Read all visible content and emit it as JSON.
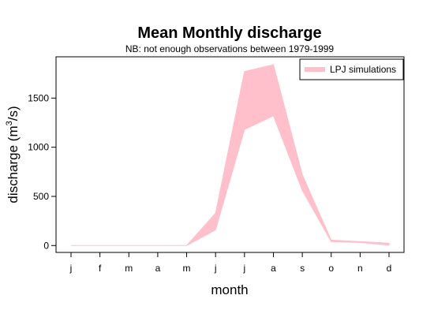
{
  "chart_data": {
    "type": "area",
    "title": "Mean Monthly discharge",
    "subtitle": "NB: not enough observations between 1979-1999",
    "xlabel": "month",
    "ylabel_main": "discharge (m",
    "ylabel_sup": "3",
    "ylabel_end": "/s)",
    "categories": [
      "j",
      "f",
      "m",
      "a",
      "m",
      "j",
      "j",
      "a",
      "s",
      "o",
      "n",
      "d"
    ],
    "yticks": [
      0,
      500,
      1000,
      1500
    ],
    "ylim": [
      -70,
      1920
    ],
    "grid": false,
    "legend_position": "top-right",
    "series": [
      {
        "name": "LPJ simulations",
        "type": "band",
        "color": "#FFC0CB",
        "lower": [
          0,
          0,
          0,
          0,
          0,
          160,
          1180,
          1320,
          560,
          40,
          30,
          5
        ],
        "upper": [
          0,
          0,
          0,
          0,
          0,
          330,
          1770,
          1840,
          720,
          55,
          40,
          25
        ]
      }
    ]
  }
}
